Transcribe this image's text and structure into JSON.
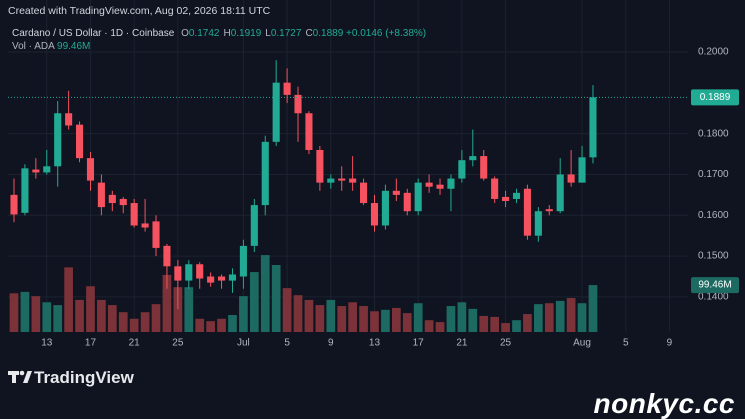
{
  "header": "Created with TradingView.com, Aug 02, 2026 18:11 UTC",
  "footer": {
    "logo": "TradingView",
    "site": "nonkyc.cc"
  },
  "chart_data": {
    "type": "candlestick",
    "legend": {
      "symbol": "Cardano / US Dollar · 1D · Coinbase",
      "ohlc": [
        {
          "key": "O",
          "value": "0.1742"
        },
        {
          "key": "H",
          "value": "0.1919"
        },
        {
          "key": "L",
          "value": "0.1727"
        },
        {
          "key": "C",
          "value": "0.1889"
        }
      ],
      "change": "+0.0146 (+8.38%)",
      "volume_name": "Vol · ADA",
      "volume_value": "99.46M"
    },
    "open": [
      0.165,
      0.1606,
      0.1712,
      0.1705,
      0.172,
      0.185,
      0.1822,
      0.174,
      0.168,
      0.165,
      0.164,
      0.163,
      0.158,
      0.1585,
      0.1525,
      0.1475,
      0.144,
      0.148,
      0.145,
      0.145,
      0.144,
      0.145,
      0.1525,
      0.1625,
      0.178,
      0.1925,
      0.1895,
      0.185,
      0.176,
      0.168,
      0.169,
      0.169,
      0.168,
      0.163,
      0.1575,
      0.166,
      0.1655,
      0.161,
      0.168,
      0.1675,
      0.1665,
      0.169,
      0.1735,
      0.1745,
      0.169,
      0.1645,
      0.164,
      0.1665,
      0.155,
      0.1615,
      0.161,
      0.17,
      0.168,
      0.1742
    ],
    "high": [
      0.169,
      0.1725,
      0.174,
      0.176,
      0.188,
      0.1905,
      0.183,
      0.1755,
      0.17,
      0.166,
      0.1645,
      0.164,
      0.164,
      0.16,
      0.153,
      0.149,
      0.149,
      0.1485,
      0.146,
      0.1455,
      0.147,
      0.154,
      0.164,
      0.1795,
      0.198,
      0.196,
      0.1915,
      0.1855,
      0.177,
      0.17,
      0.172,
      0.1745,
      0.169,
      0.165,
      0.1675,
      0.169,
      0.1665,
      0.169,
      0.17,
      0.169,
      0.17,
      0.176,
      0.181,
      0.176,
      0.1695,
      0.166,
      0.1665,
      0.1675,
      0.162,
      0.1625,
      0.174,
      0.176,
      0.177,
      0.1919
    ],
    "low": [
      0.1583,
      0.16,
      0.169,
      0.17,
      0.167,
      0.181,
      0.173,
      0.166,
      0.16,
      0.161,
      0.1605,
      0.157,
      0.156,
      0.15,
      0.142,
      0.137,
      0.142,
      0.142,
      0.1425,
      0.142,
      0.141,
      0.142,
      0.151,
      0.16,
      0.177,
      0.1875,
      0.178,
      0.175,
      0.166,
      0.1665,
      0.166,
      0.166,
      0.1625,
      0.156,
      0.1565,
      0.1635,
      0.16,
      0.16,
      0.1655,
      0.165,
      0.161,
      0.168,
      0.172,
      0.1685,
      0.163,
      0.162,
      0.163,
      0.154,
      0.1535,
      0.16,
      0.1605,
      0.167,
      0.168,
      0.1727
    ],
    "close": [
      0.1602,
      0.1715,
      0.1705,
      0.172,
      0.185,
      0.182,
      0.174,
      0.1685,
      0.162,
      0.163,
      0.1625,
      0.1575,
      0.157,
      0.152,
      0.1475,
      0.144,
      0.148,
      0.1445,
      0.1435,
      0.144,
      0.1455,
      0.1525,
      0.1625,
      0.178,
      0.1925,
      0.1895,
      0.185,
      0.176,
      0.168,
      0.169,
      0.1685,
      0.168,
      0.163,
      0.1575,
      0.166,
      0.165,
      0.161,
      0.168,
      0.167,
      0.1665,
      0.169,
      0.1735,
      0.1745,
      0.169,
      0.164,
      0.1635,
      0.1655,
      0.155,
      0.161,
      0.161,
      0.17,
      0.168,
      0.1742,
      0.1889
    ],
    "volume": [
      82,
      85,
      76,
      63,
      57,
      137,
      68,
      97,
      68,
      57,
      42,
      28,
      42,
      59,
      121,
      95,
      95,
      28,
      23,
      28,
      36,
      76,
      127,
      163,
      142,
      93,
      78,
      68,
      57,
      68,
      55,
      63,
      55,
      44,
      47,
      51,
      40,
      61,
      25,
      21,
      55,
      63,
      49,
      34,
      32,
      19,
      25,
      38,
      59,
      61,
      66,
      72,
      61,
      99.46
    ],
    "xlim": [
      -0.55,
      61.7
    ],
    "xticks": [
      {
        "value": 3,
        "label": "13"
      },
      {
        "value": 7,
        "label": "17"
      },
      {
        "value": 11,
        "label": "21"
      },
      {
        "value": 15,
        "label": "25"
      },
      {
        "value": 21,
        "label": "Jul"
      },
      {
        "value": 25,
        "label": "5"
      },
      {
        "value": 29,
        "label": "9"
      },
      {
        "value": 33,
        "label": "13"
      },
      {
        "value": 37,
        "label": "17"
      },
      {
        "value": 41,
        "label": "21"
      },
      {
        "value": 45,
        "label": "25"
      },
      {
        "value": 52,
        "label": "Aug"
      },
      {
        "value": 56,
        "label": "5"
      },
      {
        "value": 60,
        "label": "9"
      }
    ],
    "ylim": [
      0.1314,
      0.2054
    ],
    "yticks": [
      {
        "value": 0.2,
        "label": "0.2000"
      },
      {
        "value": 0.18,
        "label": "0.1800"
      },
      {
        "value": 0.17,
        "label": "0.1700"
      },
      {
        "value": 0.16,
        "label": "0.1600"
      },
      {
        "value": 0.15,
        "label": "0.1500"
      },
      {
        "value": 0.14,
        "label": "0.1400"
      }
    ],
    "y2lim": [
      0,
      640
    ],
    "price_tag": {
      "value": 0.1889,
      "label": "0.1889"
    },
    "volume_tag": {
      "value": 99.46,
      "label": "99.46M"
    },
    "grid": true,
    "up_color": "#22ab94",
    "down_color": "#f7525f",
    "volume_up_color": "#1c6a62",
    "volume_down_color": "#7b3238"
  }
}
